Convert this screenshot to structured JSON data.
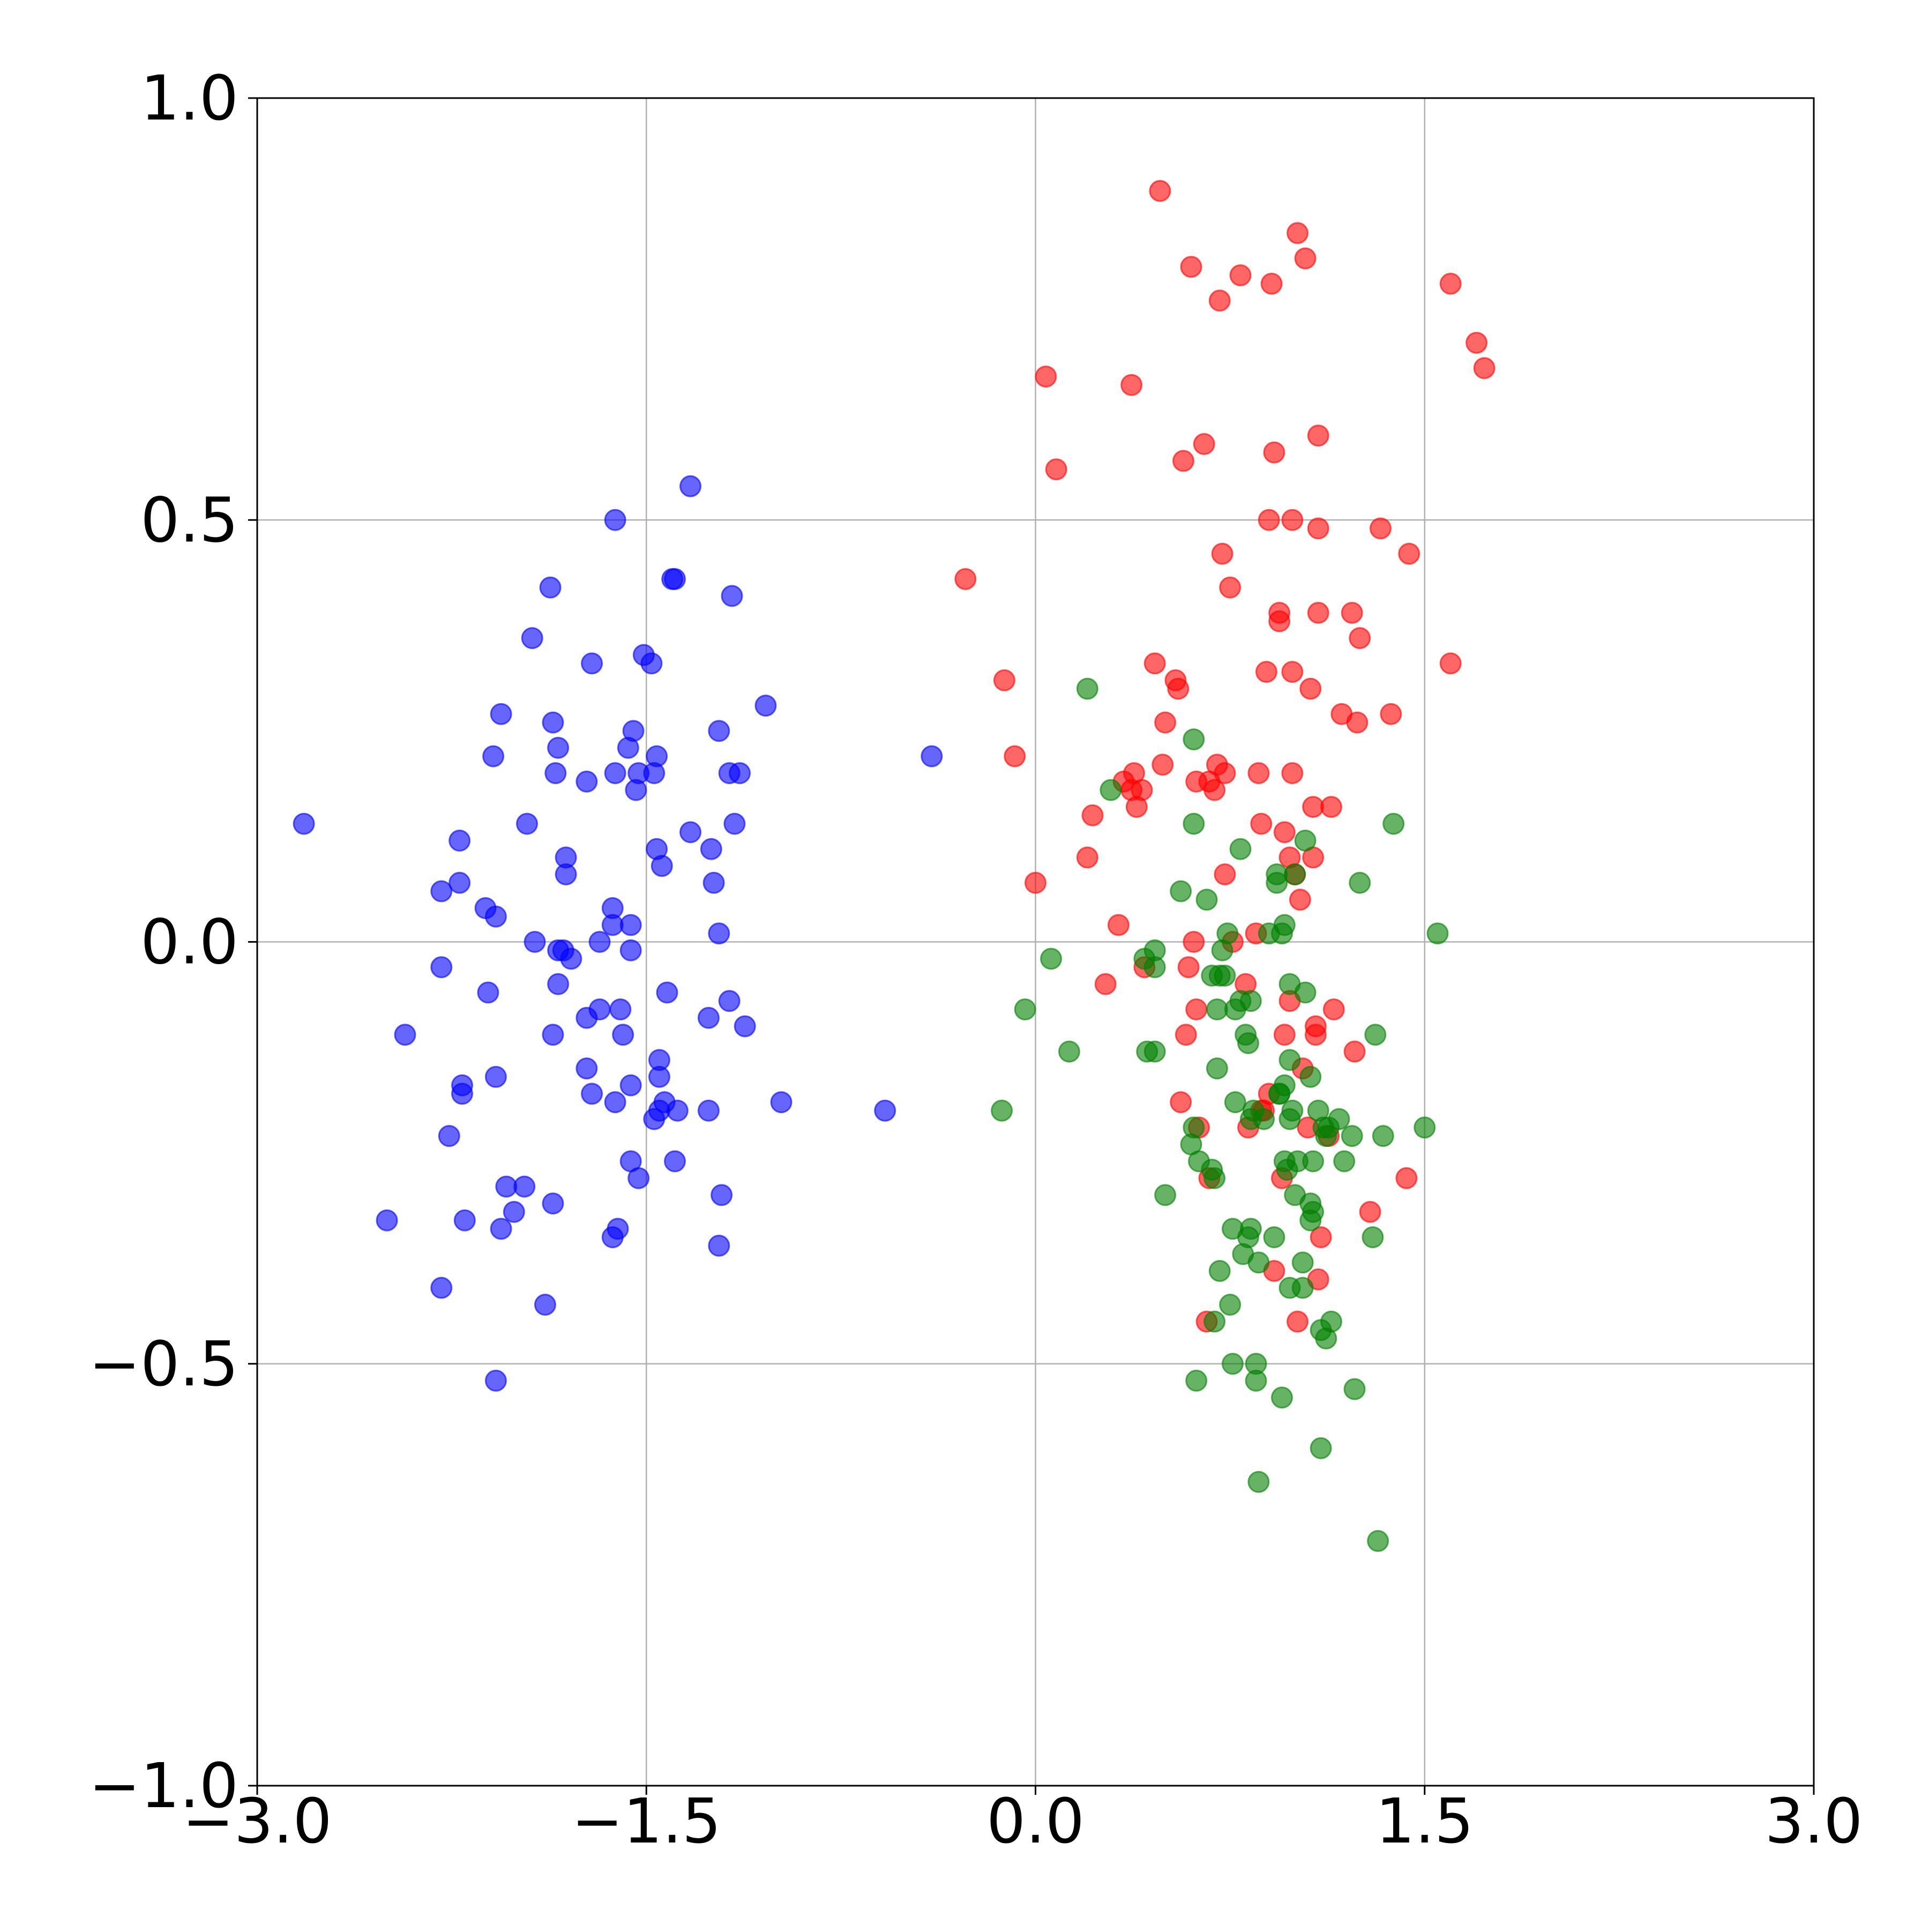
{
  "chart_data": {
    "type": "scatter",
    "title": "",
    "xlabel": "",
    "ylabel": "",
    "xlim": [
      -3.0,
      3.0
    ],
    "ylim": [
      -1.0,
      1.0
    ],
    "grid": true,
    "legend": "none",
    "x_ticks": [
      "−3.0",
      "−1.5",
      "0.0",
      "1.5",
      "3.0"
    ],
    "x_tick_values": [
      -3.0,
      -1.5,
      0.0,
      1.5,
      3.0
    ],
    "y_ticks": [
      "1.0",
      "0.5",
      "0.0",
      "−0.5",
      "−1.0"
    ],
    "y_tick_values": [
      1.0,
      0.5,
      0.0,
      -0.5,
      -1.0
    ],
    "series": [
      {
        "color": "#0000ff",
        "points": [
          [
            -2.82,
            0.14
          ],
          [
            -2.5,
            -0.33
          ],
          [
            -2.43,
            -0.11
          ],
          [
            -2.29,
            0.06
          ],
          [
            -2.29,
            -0.03
          ],
          [
            -2.29,
            -0.41
          ],
          [
            -2.26,
            -0.23
          ],
          [
            -2.22,
            0.12
          ],
          [
            -2.22,
            0.07
          ],
          [
            -2.21,
            -0.17
          ],
          [
            -2.21,
            -0.18
          ],
          [
            -2.2,
            -0.33
          ],
          [
            -2.12,
            0.04
          ],
          [
            -2.11,
            -0.06
          ],
          [
            -2.09,
            0.22
          ],
          [
            -2.08,
            0.03
          ],
          [
            -2.08,
            -0.16
          ],
          [
            -2.08,
            -0.52
          ],
          [
            -2.06,
            0.27
          ],
          [
            -2.06,
            -0.34
          ],
          [
            -2.04,
            -0.29
          ],
          [
            -2.01,
            -0.32
          ],
          [
            -1.97,
            -0.29
          ],
          [
            -1.96,
            0.14
          ],
          [
            -1.94,
            0.36
          ],
          [
            -1.93,
            0.0
          ],
          [
            -1.89,
            -0.43
          ],
          [
            -1.87,
            0.42
          ],
          [
            -1.86,
            0.26
          ],
          [
            -1.86,
            -0.31
          ],
          [
            -1.86,
            -0.11
          ],
          [
            -1.85,
            0.2
          ],
          [
            -1.84,
            0.23
          ],
          [
            -1.84,
            -0.01
          ],
          [
            -1.84,
            -0.05
          ],
          [
            -1.82,
            -0.01
          ],
          [
            -1.81,
            0.1
          ],
          [
            -1.81,
            0.08
          ],
          [
            -1.79,
            -0.02
          ],
          [
            -1.73,
            0.19
          ],
          [
            -1.73,
            -0.09
          ],
          [
            -1.73,
            -0.15
          ],
          [
            -1.71,
            0.33
          ],
          [
            -1.71,
            -0.18
          ],
          [
            -1.68,
            0.0
          ],
          [
            -1.68,
            -0.08
          ],
          [
            -1.63,
            0.02
          ],
          [
            -1.63,
            0.04
          ],
          [
            -1.63,
            -0.35
          ],
          [
            -1.62,
            0.5
          ],
          [
            -1.62,
            0.2
          ],
          [
            -1.62,
            -0.19
          ],
          [
            -1.61,
            -0.34
          ],
          [
            -1.6,
            -0.08
          ],
          [
            -1.59,
            -0.11
          ],
          [
            -1.57,
            0.23
          ],
          [
            -1.56,
            0.02
          ],
          [
            -1.56,
            -0.01
          ],
          [
            -1.56,
            -0.17
          ],
          [
            -1.56,
            -0.26
          ],
          [
            -1.55,
            0.25
          ],
          [
            -1.54,
            0.18
          ],
          [
            -1.53,
            0.2
          ],
          [
            -1.53,
            -0.28
          ],
          [
            -1.51,
            0.34
          ],
          [
            -1.48,
            0.33
          ],
          [
            -1.47,
            0.2
          ],
          [
            -1.47,
            -0.21
          ],
          [
            -1.46,
            0.22
          ],
          [
            -1.46,
            0.11
          ],
          [
            -1.45,
            -0.2
          ],
          [
            -1.45,
            -0.14
          ],
          [
            -1.45,
            -0.16
          ],
          [
            -1.44,
            0.09
          ],
          [
            -1.43,
            -0.19
          ],
          [
            -1.42,
            -0.06
          ],
          [
            -1.4,
            0.43
          ],
          [
            -1.39,
            0.43
          ],
          [
            -1.39,
            -0.26
          ],
          [
            -1.38,
            -0.2
          ],
          [
            -1.33,
            0.54
          ],
          [
            -1.33,
            0.13
          ],
          [
            -1.26,
            -0.2
          ],
          [
            -1.26,
            -0.09
          ],
          [
            -1.25,
            0.11
          ],
          [
            -1.24,
            0.07
          ],
          [
            -1.22,
            0.25
          ],
          [
            -1.22,
            0.01
          ],
          [
            -1.22,
            -0.36
          ],
          [
            -1.21,
            -0.3
          ],
          [
            -1.18,
            -0.07
          ],
          [
            -1.18,
            0.2
          ],
          [
            -1.17,
            0.41
          ],
          [
            -1.16,
            0.14
          ],
          [
            -1.14,
            0.2
          ],
          [
            -1.12,
            -0.1
          ],
          [
            -1.04,
            0.28
          ],
          [
            -0.98,
            -0.19
          ],
          [
            -0.58,
            -0.2
          ],
          [
            -0.4,
            0.22
          ]
        ]
      },
      {
        "color": "#ff0000",
        "points": [
          [
            -0.27,
            0.43
          ],
          [
            -0.12,
            0.31
          ],
          [
            -0.08,
            0.22
          ],
          [
            0.0,
            0.07
          ],
          [
            0.04,
            0.67
          ],
          [
            0.08,
            0.56
          ],
          [
            0.2,
            0.1
          ],
          [
            0.22,
            0.15
          ],
          [
            0.27,
            -0.05
          ],
          [
            0.32,
            0.02
          ],
          [
            0.34,
            0.19
          ],
          [
            0.37,
            0.18
          ],
          [
            0.37,
            0.66
          ],
          [
            0.38,
            0.2
          ],
          [
            0.39,
            0.16
          ],
          [
            0.41,
            0.18
          ],
          [
            0.42,
            -0.03
          ],
          [
            0.46,
            0.33
          ],
          [
            0.48,
            0.89
          ],
          [
            0.49,
            0.21
          ],
          [
            0.5,
            0.26
          ],
          [
            0.54,
            0.31
          ],
          [
            0.55,
            0.3
          ],
          [
            0.56,
            -0.19
          ],
          [
            0.57,
            0.57
          ],
          [
            0.58,
            -0.11
          ],
          [
            0.59,
            -0.03
          ],
          [
            0.6,
            0.8
          ],
          [
            0.61,
            0.0
          ],
          [
            0.62,
            -0.08
          ],
          [
            0.62,
            0.19
          ],
          [
            0.63,
            -0.22
          ],
          [
            0.65,
            0.59
          ],
          [
            0.66,
            -0.45
          ],
          [
            0.67,
            -0.28
          ],
          [
            0.67,
            0.19
          ],
          [
            0.69,
            0.18
          ],
          [
            0.7,
            0.21
          ],
          [
            0.71,
            0.76
          ],
          [
            0.72,
            0.46
          ],
          [
            0.73,
            0.2
          ],
          [
            0.73,
            0.08
          ],
          [
            0.75,
            0.42
          ],
          [
            0.76,
            0.0
          ],
          [
            0.79,
            0.79
          ],
          [
            0.81,
            -0.05
          ],
          [
            0.82,
            -0.22
          ],
          [
            0.85,
            0.01
          ],
          [
            0.86,
            0.2
          ],
          [
            0.87,
            0.14
          ],
          [
            0.87,
            -0.2
          ],
          [
            0.88,
            -0.2
          ],
          [
            0.89,
            0.32
          ],
          [
            0.9,
            0.5
          ],
          [
            0.9,
            -0.18
          ],
          [
            0.91,
            0.78
          ],
          [
            0.92,
            0.58
          ],
          [
            0.92,
            -0.39
          ],
          [
            0.94,
            0.39
          ],
          [
            0.94,
            0.38
          ],
          [
            0.95,
            -0.28
          ],
          [
            0.96,
            -0.11
          ],
          [
            0.96,
            0.13
          ],
          [
            0.98,
            -0.07
          ],
          [
            0.98,
            0.1
          ],
          [
            0.99,
            0.5
          ],
          [
            0.99,
            0.32
          ],
          [
            0.99,
            0.2
          ],
          [
            1.0,
            0.08
          ],
          [
            1.01,
            0.84
          ],
          [
            1.01,
            -0.45
          ],
          [
            1.02,
            0.05
          ],
          [
            1.03,
            -0.15
          ],
          [
            1.04,
            0.81
          ],
          [
            1.05,
            -0.22
          ],
          [
            1.06,
            0.3
          ],
          [
            1.07,
            0.16
          ],
          [
            1.07,
            0.1
          ],
          [
            1.08,
            -0.1
          ],
          [
            1.08,
            -0.11
          ],
          [
            1.09,
            0.6
          ],
          [
            1.09,
            0.49
          ],
          [
            1.09,
            0.39
          ],
          [
            1.09,
            -0.4
          ],
          [
            1.1,
            -0.35
          ],
          [
            1.13,
            -0.23
          ],
          [
            1.14,
            0.16
          ],
          [
            1.15,
            -0.08
          ],
          [
            1.18,
            0.27
          ],
          [
            1.22,
            0.39
          ],
          [
            1.23,
            -0.13
          ],
          [
            1.24,
            0.26
          ],
          [
            1.25,
            0.36
          ],
          [
            1.29,
            -0.32
          ],
          [
            1.33,
            0.49
          ],
          [
            1.37,
            0.27
          ],
          [
            1.43,
            -0.28
          ],
          [
            1.44,
            0.46
          ],
          [
            1.6,
            0.33
          ],
          [
            1.6,
            0.78
          ],
          [
            1.7,
            0.71
          ],
          [
            1.73,
            0.68
          ]
        ]
      },
      {
        "color": "#008000",
        "points": [
          [
            -0.13,
            -0.2
          ],
          [
            -0.04,
            -0.08
          ],
          [
            0.06,
            -0.02
          ],
          [
            0.13,
            -0.13
          ],
          [
            0.2,
            0.3
          ],
          [
            0.29,
            0.18
          ],
          [
            0.42,
            -0.02
          ],
          [
            0.43,
            -0.13
          ],
          [
            0.46,
            -0.13
          ],
          [
            0.46,
            -0.01
          ],
          [
            0.46,
            -0.03
          ],
          [
            0.5,
            -0.3
          ],
          [
            0.56,
            0.06
          ],
          [
            0.6,
            -0.24
          ],
          [
            0.61,
            0.24
          ],
          [
            0.61,
            0.14
          ],
          [
            0.61,
            -0.22
          ],
          [
            0.62,
            -0.52
          ],
          [
            0.63,
            -0.26
          ],
          [
            0.66,
            0.05
          ],
          [
            0.68,
            -0.27
          ],
          [
            0.68,
            -0.04
          ],
          [
            0.69,
            -0.28
          ],
          [
            0.69,
            -0.45
          ],
          [
            0.7,
            -0.08
          ],
          [
            0.7,
            -0.15
          ],
          [
            0.71,
            -0.04
          ],
          [
            0.71,
            -0.39
          ],
          [
            0.72,
            -0.01
          ],
          [
            0.73,
            -0.04
          ],
          [
            0.74,
            0.01
          ],
          [
            0.75,
            -0.43
          ],
          [
            0.76,
            -0.5
          ],
          [
            0.76,
            -0.34
          ],
          [
            0.77,
            -0.19
          ],
          [
            0.77,
            -0.08
          ],
          [
            0.79,
            0.11
          ],
          [
            0.79,
            -0.07
          ],
          [
            0.8,
            -0.37
          ],
          [
            0.81,
            -0.11
          ],
          [
            0.82,
            -0.12
          ],
          [
            0.82,
            -0.35
          ],
          [
            0.83,
            -0.34
          ],
          [
            0.83,
            -0.21
          ],
          [
            0.83,
            -0.07
          ],
          [
            0.84,
            -0.2
          ],
          [
            0.85,
            -0.5
          ],
          [
            0.85,
            -0.52
          ],
          [
            0.86,
            -0.64
          ],
          [
            0.86,
            -0.38
          ],
          [
            0.88,
            -0.21
          ],
          [
            0.9,
            0.01
          ],
          [
            0.92,
            -0.35
          ],
          [
            0.93,
            0.08
          ],
          [
            0.93,
            0.07
          ],
          [
            0.94,
            -0.18
          ],
          [
            0.94,
            -0.18
          ],
          [
            0.95,
            -0.54
          ],
          [
            0.95,
            0.01
          ],
          [
            0.96,
            0.02
          ],
          [
            0.96,
            -0.26
          ],
          [
            0.96,
            -0.17
          ],
          [
            0.97,
            -0.27
          ],
          [
            0.98,
            -0.05
          ],
          [
            0.98,
            -0.21
          ],
          [
            0.98,
            -0.41
          ],
          [
            0.98,
            -0.14
          ],
          [
            0.99,
            -0.2
          ],
          [
            1.0,
            -0.3
          ],
          [
            1.0,
            0.08
          ],
          [
            1.01,
            -0.26
          ],
          [
            1.03,
            -0.38
          ],
          [
            1.03,
            -0.41
          ],
          [
            1.04,
            -0.06
          ],
          [
            1.04,
            0.12
          ],
          [
            1.06,
            -0.16
          ],
          [
            1.06,
            -0.31
          ],
          [
            1.06,
            -0.33
          ],
          [
            1.07,
            -0.32
          ],
          [
            1.07,
            -0.26
          ],
          [
            1.09,
            -0.2
          ],
          [
            1.1,
            -0.46
          ],
          [
            1.1,
            -0.6
          ],
          [
            1.11,
            -0.22
          ],
          [
            1.12,
            -0.47
          ],
          [
            1.12,
            -0.23
          ],
          [
            1.13,
            -0.22
          ],
          [
            1.14,
            -0.45
          ],
          [
            1.17,
            -0.21
          ],
          [
            1.19,
            -0.26
          ],
          [
            1.22,
            -0.23
          ],
          [
            1.23,
            -0.53
          ],
          [
            1.25,
            0.07
          ],
          [
            1.3,
            -0.35
          ],
          [
            1.31,
            -0.11
          ],
          [
            1.32,
            -0.71
          ],
          [
            1.34,
            -0.23
          ],
          [
            1.38,
            0.14
          ],
          [
            1.5,
            -0.22
          ],
          [
            1.55,
            0.01
          ]
        ]
      }
    ]
  }
}
